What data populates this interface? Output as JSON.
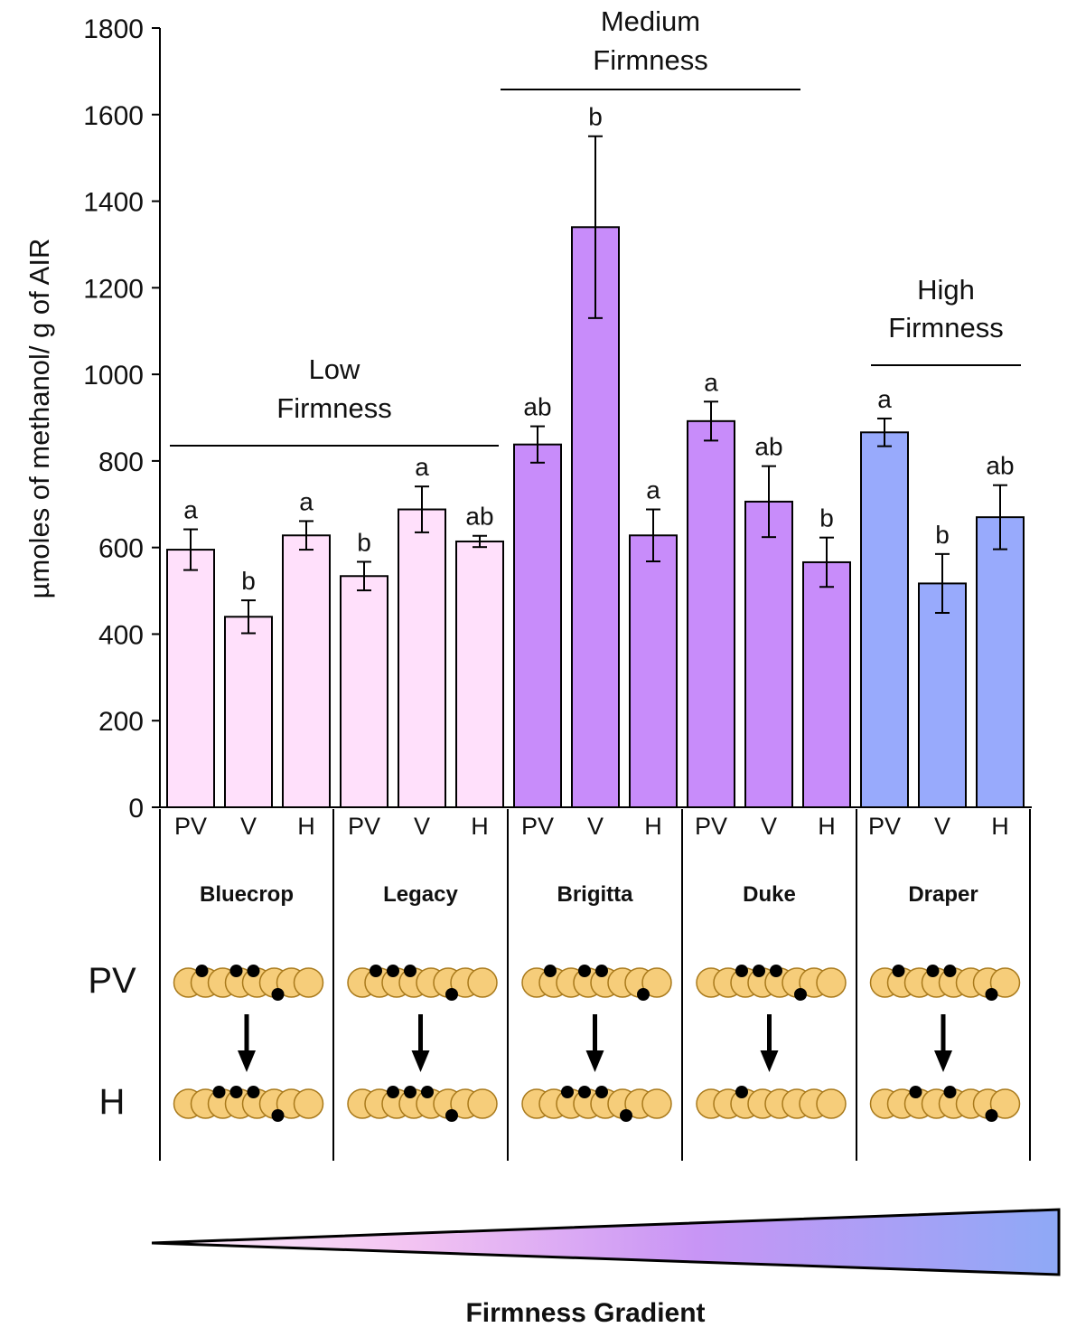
{
  "chart_data": {
    "type": "bar",
    "ylabel": "µmoles of methanol/ g of AIR",
    "ylim": [
      0,
      1800
    ],
    "yticks": [
      0,
      200,
      400,
      600,
      800,
      1000,
      1200,
      1400,
      1600,
      1800
    ],
    "stages": [
      "PV",
      "V",
      "H"
    ],
    "cultivars": [
      "Bluecrop",
      "Legacy",
      "Brigitta",
      "Duke",
      "Draper"
    ],
    "series": [
      {
        "cultivar": "Bluecrop",
        "firmness": "low",
        "values": [
          595,
          440,
          628
        ],
        "errors": [
          47,
          38,
          33
        ],
        "letters": [
          "a",
          "b",
          "a"
        ]
      },
      {
        "cultivar": "Legacy",
        "firmness": "low",
        "values": [
          534,
          688,
          614
        ],
        "errors": [
          33,
          53,
          13
        ],
        "letters": [
          "b",
          "a",
          "ab"
        ]
      },
      {
        "cultivar": "Brigitta",
        "firmness": "medium",
        "values": [
          838,
          1340,
          628
        ],
        "errors": [
          42,
          210,
          60
        ],
        "letters": [
          "ab",
          "b",
          "a"
        ]
      },
      {
        "cultivar": "Duke",
        "firmness": "medium",
        "values": [
          892,
          706,
          566
        ],
        "errors": [
          45,
          82,
          57
        ],
        "letters": [
          "a",
          "ab",
          "b"
        ]
      },
      {
        "cultivar": "Draper",
        "firmness": "high",
        "values": [
          866,
          517,
          670
        ],
        "errors": [
          32,
          68,
          74
        ],
        "letters": [
          "a",
          "b",
          "ab"
        ]
      }
    ],
    "groups": [
      {
        "key": "low",
        "line1": "Low",
        "line2": "Firmness",
        "cultivars": [
          "Bluecrop",
          "Legacy"
        ]
      },
      {
        "key": "medium",
        "line1": "Medium",
        "line2": "Firmness",
        "cultivars": [
          "Brigitta",
          "Duke"
        ]
      },
      {
        "key": "high",
        "line1": "High",
        "line2": "Firmness",
        "cultivars": [
          "Draper"
        ]
      }
    ],
    "row_labels": [
      "PV",
      "H"
    ],
    "gradient_label": "Firmness Gradient",
    "colors": {
      "low": "#ffe0fb",
      "medium": "#c88cfa",
      "high": "#98aafc",
      "bead": "#f6cd7a",
      "bead_stroke": "#a97a1c",
      "methyl": "#000000",
      "axis": "#000000"
    }
  }
}
